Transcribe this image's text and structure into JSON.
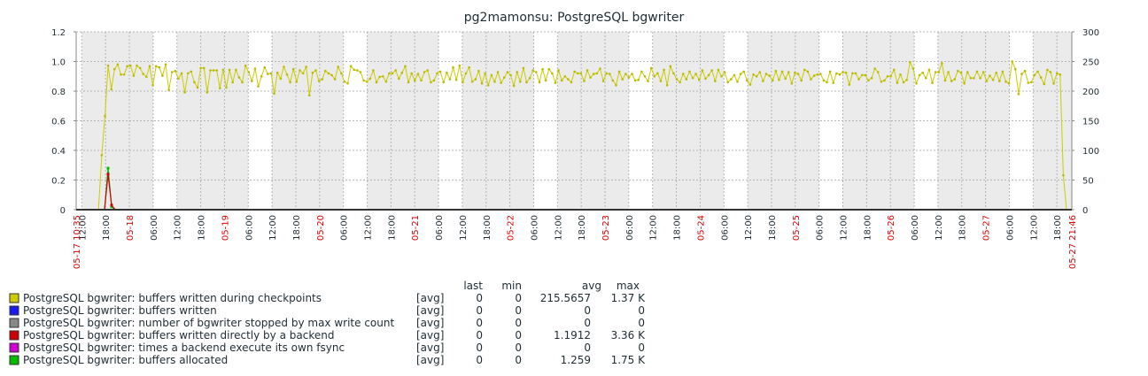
{
  "chart_data": {
    "type": "line",
    "title": "pg2mamonsu: PostgreSQL bgwriter",
    "left_axis": {
      "ticks": [
        "0",
        "0.2",
        "0.4",
        "0.6",
        "0.8",
        "1.0",
        "1.2"
      ],
      "ylim": [
        0,
        1.2
      ]
    },
    "right_axis": {
      "ticks": [
        "0",
        "50",
        "100",
        "150",
        "200",
        "250",
        "300"
      ],
      "ylim": [
        0,
        300
      ]
    },
    "x_start_label": "05-17 10:35",
    "x_end_label": "05-27 21:46",
    "day_labels": [
      "05-18",
      "05-19",
      "05-20",
      "05-21",
      "05-22",
      "05-23",
      "05-24",
      "05-25",
      "05-26",
      "05-27"
    ],
    "hour_labels": [
      "18:00",
      "06:00",
      "12:00"
    ],
    "grid": true,
    "legend_headers": {
      "last": "last",
      "min": "min",
      "avg": "avg",
      "max": "max"
    },
    "series": [
      {
        "name": "PostgreSQL bgwriter: buffers written during checkpoints",
        "color": "#cccc00",
        "func": "[avg]",
        "last": "0",
        "min": "0",
        "avg": "215.5657",
        "max": "1.37 K"
      },
      {
        "name": "PostgreSQL bgwriter: buffers written",
        "color": "#1a1aef",
        "func": "[avg]",
        "last": "0",
        "min": "0",
        "avg": "0",
        "max": "0"
      },
      {
        "name": "PostgreSQL bgwriter: number of bgwriter stopped by max write count",
        "color": "#888888",
        "func": "[avg]",
        "last": "0",
        "min": "0",
        "avg": "0",
        "max": "0"
      },
      {
        "name": "PostgreSQL bgwriter: buffers written directly by a backend",
        "color": "#cc0000",
        "func": "[avg]",
        "last": "0",
        "min": "0",
        "avg": "1.1912",
        "max": "3.36 K"
      },
      {
        "name": "PostgreSQL bgwriter: times a backend execute its own fsync",
        "color": "#cc00cc",
        "func": "[avg]",
        "last": "0",
        "min": "0",
        "avg": "0",
        "max": "0"
      },
      {
        "name": "PostgreSQL bgwriter: buffers allocated",
        "color": "#00bb00",
        "func": "[avg]",
        "last": "0",
        "min": "0",
        "avg": "1.259",
        "max": "1.75 K"
      }
    ],
    "main_series_values_right_axis": [
      0,
      0,
      0,
      0,
      0,
      0,
      0,
      0,
      92,
      158,
      243,
      203,
      237,
      245,
      228,
      228,
      242,
      243,
      226,
      243,
      239,
      229,
      224,
      242,
      210,
      242,
      240,
      226,
      245,
      202,
      232,
      234,
      221,
      230,
      198,
      230,
      233,
      215,
      206,
      239,
      239,
      198,
      235,
      235,
      235,
      205,
      236,
      206,
      236,
      215,
      236,
      223,
      215,
      243,
      232,
      217,
      238,
      208,
      225,
      240,
      229,
      230,
      196,
      231,
      221,
      241,
      228,
      215,
      237,
      216,
      235,
      230,
      241,
      193,
      231,
      235,
      217,
      220,
      234,
      230,
      227,
      220,
      241,
      230,
      216,
      213,
      242,
      236,
      235,
      232,
      218,
      216,
      221,
      235,
      215,
      224,
      225,
      216,
      230,
      230,
      235,
      221,
      231,
      242,
      215,
      230,
      218,
      229,
      218,
      232,
      235,
      215,
      218,
      230,
      233,
      215,
      231,
      220,
      240,
      219,
      243,
      215,
      230,
      240,
      216,
      220,
      234,
      213,
      230,
      210,
      227,
      216,
      232,
      214,
      223,
      232,
      227,
      209,
      232,
      216,
      239,
      215,
      222,
      235,
      232,
      215,
      237,
      218,
      237,
      230,
      214,
      235,
      218,
      225,
      220,
      215,
      233,
      230,
      230,
      217,
      235,
      223,
      229,
      230,
      238,
      217,
      230,
      229,
      218,
      210,
      233,
      220,
      229,
      223,
      229,
      218,
      219,
      233,
      225,
      217,
      239,
      225,
      230,
      217,
      236,
      210,
      242,
      230,
      220,
      215,
      229,
      220,
      233,
      222,
      229,
      219,
      235,
      221,
      227,
      235,
      217,
      236,
      225,
      232,
      215,
      220,
      227,
      216,
      229,
      233,
      218,
      211,
      228,
      225,
      232,
      217,
      229,
      226,
      218,
      234,
      219,
      233,
      221,
      232,
      213,
      231,
      229,
      218,
      236,
      233,
      220,
      226,
      228,
      229,
      218,
      215,
      233,
      214,
      230,
      228,
      232,
      231,
      211,
      230,
      230,
      220,
      227,
      227,
      218,
      222,
      238,
      232,
      216,
      218,
      225,
      225,
      236,
      214,
      228,
      215,
      219,
      249,
      238,
      213,
      227,
      231,
      222,
      236,
      214,
      232,
      232,
      247,
      218,
      232,
      217,
      220,
      234,
      231,
      213,
      232,
      222,
      222,
      233,
      222,
      232,
      217,
      226,
      219,
      231,
      217,
      233,
      216,
      213,
      250,
      237,
      195,
      229,
      234,
      214,
      215,
      227,
      233,
      223,
      212,
      236,
      232,
      213,
      230,
      228,
      58,
      0
    ],
    "backend_spike_left_axis": [
      0,
      0.24,
      0.03,
      0
    ],
    "allocated_spike_left_axis": [
      0,
      0.28,
      0.02,
      0
    ]
  }
}
